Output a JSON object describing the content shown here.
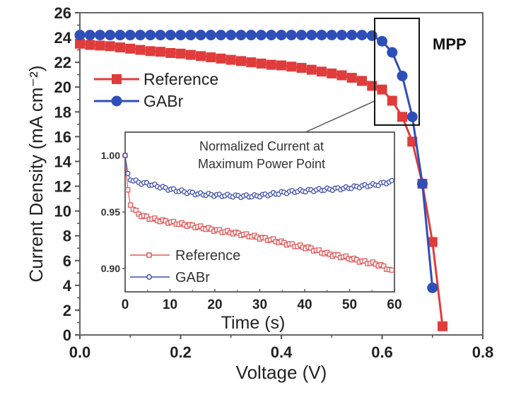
{
  "chart_data": [
    {
      "type": "line",
      "title": "",
      "xlabel": "Voltage (V)",
      "ylabel": "Current Density (mA cm⁻²)",
      "xlim": [
        0.0,
        0.8
      ],
      "ylim": [
        0,
        26
      ],
      "xticks": [
        "0.0",
        "0.2",
        "0.4",
        "0.6",
        "0.8"
      ],
      "yticks": [
        "0",
        "2",
        "4",
        "6",
        "8",
        "10",
        "12",
        "14",
        "16",
        "18",
        "20",
        "22",
        "24",
        "26"
      ],
      "grid": false,
      "legend_position": "upper-left",
      "annotation": "MPP",
      "series": [
        {
          "name": "Reference",
          "color": "#e03c3c",
          "marker": "square",
          "x": [
            0.0,
            0.02,
            0.04,
            0.06,
            0.08,
            0.1,
            0.12,
            0.14,
            0.16,
            0.18,
            0.2,
            0.22,
            0.24,
            0.26,
            0.28,
            0.3,
            0.32,
            0.34,
            0.36,
            0.38,
            0.4,
            0.42,
            0.44,
            0.46,
            0.48,
            0.5,
            0.52,
            0.54,
            0.56,
            0.58,
            0.6,
            0.62,
            0.64,
            0.66,
            0.68,
            0.7,
            0.72
          ],
          "y": [
            23.5,
            23.4,
            23.35,
            23.3,
            23.2,
            23.1,
            23.0,
            22.9,
            22.85,
            22.75,
            22.7,
            22.6,
            22.5,
            22.4,
            22.3,
            22.2,
            22.1,
            22.0,
            21.9,
            21.8,
            21.75,
            21.65,
            21.55,
            21.4,
            21.25,
            21.1,
            20.95,
            20.75,
            20.5,
            20.1,
            19.8,
            18.9,
            17.6,
            15.6,
            12.2,
            7.5,
            0.7
          ]
        },
        {
          "name": "GABr",
          "color": "#2f4fb8",
          "marker": "circle",
          "x": [
            0.0,
            0.02,
            0.04,
            0.06,
            0.08,
            0.1,
            0.12,
            0.14,
            0.16,
            0.18,
            0.2,
            0.22,
            0.24,
            0.26,
            0.28,
            0.3,
            0.32,
            0.34,
            0.36,
            0.38,
            0.4,
            0.42,
            0.44,
            0.46,
            0.48,
            0.5,
            0.52,
            0.54,
            0.56,
            0.58,
            0.6,
            0.62,
            0.64,
            0.66,
            0.68,
            0.7
          ],
          "y": [
            24.2,
            24.2,
            24.2,
            24.2,
            24.2,
            24.2,
            24.2,
            24.2,
            24.2,
            24.2,
            24.2,
            24.2,
            24.2,
            24.2,
            24.2,
            24.2,
            24.2,
            24.2,
            24.2,
            24.2,
            24.2,
            24.2,
            24.2,
            24.2,
            24.2,
            24.2,
            24.2,
            24.2,
            24.2,
            24.15,
            23.7,
            22.8,
            20.9,
            17.6,
            12.2,
            3.8
          ]
        }
      ]
    },
    {
      "type": "line",
      "title": "Normalized Current at Maximum Power Point",
      "title_lines": [
        "Normalized Current at",
        "Maximum Power Point"
      ],
      "xlabel": "Time (s)",
      "ylabel": "",
      "xlim": [
        0,
        60
      ],
      "ylim": [
        0.88,
        1.02
      ],
      "xticks": [
        "0",
        "10",
        "20",
        "30",
        "40",
        "50",
        "60"
      ],
      "yticks": [
        "0.90",
        "0.95",
        "1.00"
      ],
      "grid": false,
      "legend_position": "lower-left",
      "series": [
        {
          "name": "Reference",
          "color": "#e05a5a",
          "marker": "open-square",
          "x": [
            0,
            0.5,
            1,
            2,
            3,
            5,
            7,
            10,
            13,
            16,
            20,
            25,
            29,
            33,
            37,
            41,
            45,
            49,
            53,
            56,
            58,
            60
          ],
          "y": [
            1.0,
            0.971,
            0.958,
            0.952,
            0.948,
            0.945,
            0.943,
            0.941,
            0.939,
            0.937,
            0.934,
            0.931,
            0.928,
            0.925,
            0.921,
            0.918,
            0.913,
            0.91,
            0.906,
            0.904,
            0.901,
            0.896
          ]
        },
        {
          "name": "GABr",
          "color": "#3f4fb0",
          "marker": "open-circle",
          "x": [
            0,
            0.5,
            1,
            2,
            3,
            5,
            7,
            10,
            13,
            16,
            20,
            25,
            29,
            33,
            37,
            41,
            45,
            49,
            53,
            56,
            58,
            60
          ],
          "y": [
            1.0,
            0.984,
            0.979,
            0.978,
            0.976,
            0.975,
            0.973,
            0.97,
            0.968,
            0.966,
            0.965,
            0.964,
            0.964,
            0.966,
            0.968,
            0.969,
            0.97,
            0.971,
            0.973,
            0.974,
            0.976,
            0.977
          ]
        }
      ]
    }
  ]
}
